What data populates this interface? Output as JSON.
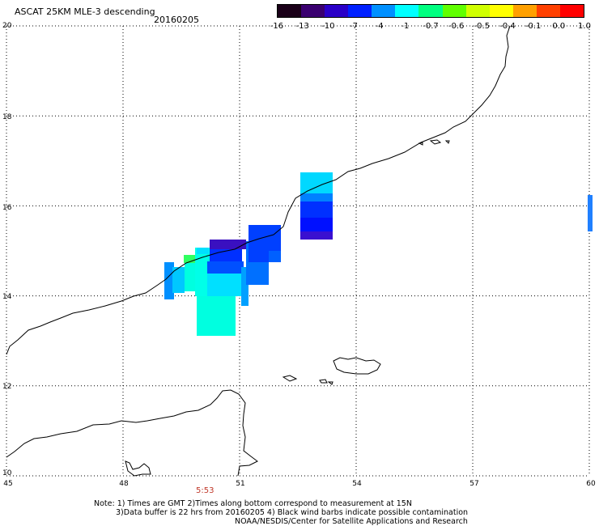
{
  "header": {
    "title": "ASCAT 25KM MLE-3 descending",
    "date": "20160205"
  },
  "colorbar": {
    "labels": [
      "-16",
      "-13",
      "-10",
      "-7",
      "-4",
      "-1",
      "-0.7",
      "-0.6",
      "-0.5",
      "-0.4",
      "-0.1",
      "0.0",
      "1.0"
    ],
    "colors": [
      "#1a0018",
      "#3a0070",
      "#2a00c8",
      "#0020ff",
      "#0090ff",
      "#00ffff",
      "#00ff80",
      "#60ff00",
      "#d0ff00",
      "#ffff00",
      "#ffa000",
      "#ff4000",
      "#ff0000"
    ]
  },
  "map": {
    "lon_range": [
      45,
      60
    ],
    "lat_range": [
      10,
      20
    ],
    "lon_labels": [
      "45",
      "48",
      "51",
      "54",
      "57",
      "60"
    ],
    "lat_labels": [
      "20",
      "18",
      "16",
      "14",
      "12",
      "10"
    ],
    "time_label": "5:53"
  },
  "notes": {
    "line1": "Note: 1) Times are GMT 2)Times along bottom correspond to measurement at 15N",
    "line2": "3)Data buffer is 22 hrs from 20160205 4) Black wind barbs indicate possible contamination",
    "line3": "NOAA/NESDIS/Center for Satellite Applications and Research"
  }
}
